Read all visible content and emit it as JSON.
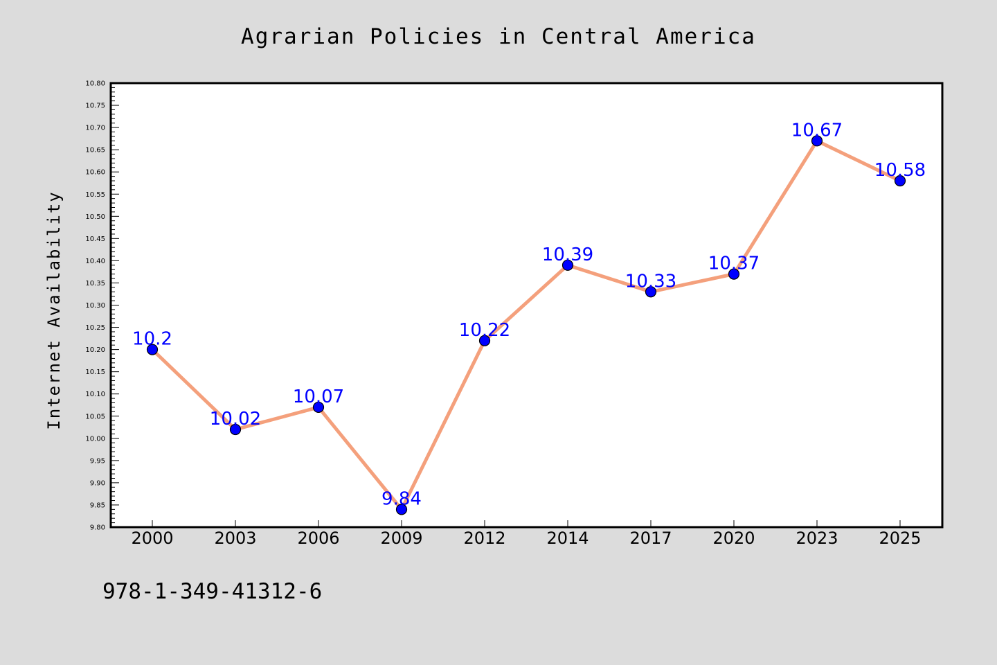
{
  "chart_data": {
    "type": "line",
    "title": "Agrarian Policies in Central America",
    "xlabel": "",
    "ylabel": "Internet Availability",
    "categories": [
      "2000",
      "2003",
      "2006",
      "2009",
      "2012",
      "2014",
      "2017",
      "2020",
      "2023",
      "2025"
    ],
    "series": [
      {
        "values": [
          10.2,
          10.02,
          10.07,
          9.84,
          10.22,
          10.39,
          10.33,
          10.37,
          10.67,
          10.58
        ],
        "data_labels": [
          "10.2",
          "10.02",
          "10.07",
          "9.84",
          "10.22",
          "10.39",
          "10.33",
          "10.37",
          "10.67",
          "10.58"
        ],
        "line_color": "#f4a07c",
        "marker_color": "#0000ff"
      }
    ],
    "ylim": [
      9.8,
      10.8
    ],
    "ytick_step": 0.05,
    "ytick_decimals": 2,
    "grid": false,
    "legend": "none"
  },
  "footer_text": "978-1-349-41312-6",
  "colors": {
    "background": "#dcdcdc",
    "plot_background": "#ffffff",
    "axis": "#000000",
    "label_text": "#0000ff"
  }
}
